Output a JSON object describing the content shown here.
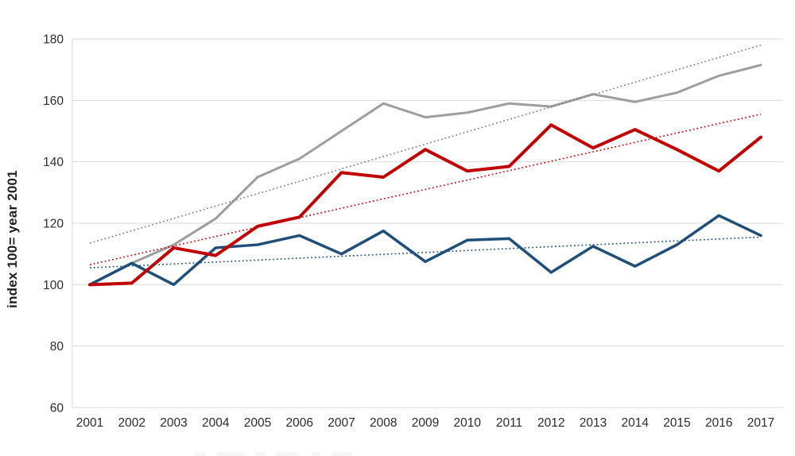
{
  "chart_data": {
    "type": "line",
    "title": "",
    "xlabel": "",
    "ylabel": "index 100= year 2001",
    "ylim": [
      60,
      180
    ],
    "yticks": [
      60,
      80,
      100,
      120,
      140,
      160,
      180
    ],
    "grid": true,
    "legend_cropped_at_bottom": true,
    "colors": {
      "red": "#C00000",
      "blue": "#1F4E79",
      "grey": "#9E9E9E",
      "grey_trend": "#7F7F7F",
      "gridline": "#D9D9D9",
      "axis_text": "#2B2B2B"
    },
    "x": [
      "2001",
      "2002",
      "2003",
      "2004",
      "2005",
      "2006",
      "2007",
      "2008",
      "2009",
      "2010",
      "2011",
      "2012",
      "2013",
      "2014",
      "2015",
      "2016",
      "2017"
    ],
    "series": [
      {
        "name": "grey-line",
        "style": "solid",
        "color": "#9E9E9E",
        "width": 3,
        "values": [
          100,
          107,
          113,
          121.5,
          135,
          141,
          150,
          159,
          154.5,
          156,
          159,
          158,
          162,
          159.5,
          162.5,
          168,
          171.5
        ]
      },
      {
        "name": "blue-line",
        "style": "solid",
        "color": "#1F4E79",
        "width": 3.5,
        "values": [
          100,
          107,
          100,
          112,
          113,
          116,
          110,
          117.5,
          107.5,
          114.5,
          115,
          104,
          112.5,
          106,
          113,
          122.5,
          116
        ]
      },
      {
        "name": "red-line",
        "style": "solid",
        "color": "#C00000",
        "width": 4,
        "values": [
          100,
          100.5,
          112,
          109.5,
          119,
          122,
          136.5,
          135,
          144,
          137,
          138.5,
          152,
          144.5,
          150.5,
          144,
          137,
          148
        ]
      },
      {
        "name": "grey-linear-trend",
        "style": "dotted",
        "color": "#7F7F7F",
        "width": 1.6,
        "trend": true,
        "values": [
          113.5,
          178
        ]
      },
      {
        "name": "red-linear-trend",
        "style": "dotted",
        "color": "#C00000",
        "width": 1.6,
        "trend": true,
        "values": [
          106.5,
          155.5
        ]
      },
      {
        "name": "blue-linear-trend",
        "style": "dotted",
        "color": "#1F4E79",
        "width": 1.6,
        "trend": true,
        "values": [
          105.5,
          115.5
        ]
      }
    ]
  }
}
